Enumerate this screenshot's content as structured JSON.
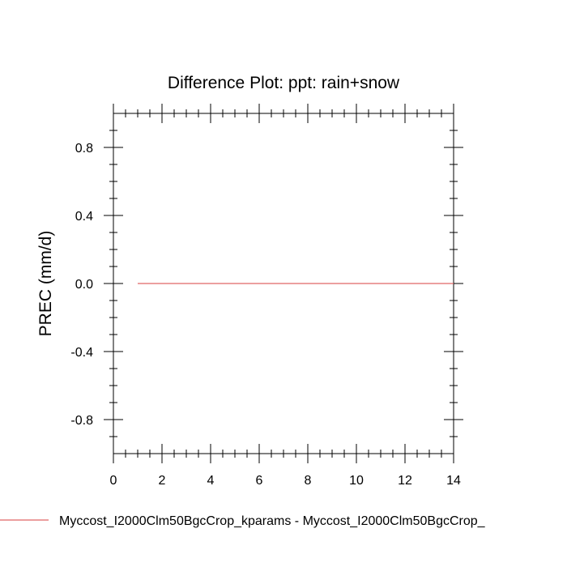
{
  "chart_data": {
    "type": "line",
    "title": "Difference Plot: ppt: rain+snow",
    "xlabel": "",
    "ylabel": "PREC  (mm/d)",
    "xlim": [
      0,
      14
    ],
    "ylim": [
      -1,
      1
    ],
    "x_major_ticks": [
      0,
      2,
      4,
      6,
      8,
      10,
      12,
      14
    ],
    "x_tick_labels": [
      "0",
      "2",
      "4",
      "6",
      "8",
      "10",
      "12",
      "14"
    ],
    "y_major_ticks": [
      0.8,
      0.4,
      0.0,
      -0.4,
      -0.8
    ],
    "y_tick_labels": [
      "0.8",
      "0.4",
      "0.0",
      "-0.4",
      "-0.8"
    ],
    "grid": false,
    "legend_position": "bottom",
    "series": [
      {
        "name": "Myccost_I2000Clm50BgcCrop_kparams - Myccost_I2000Clm50BgcCrop_",
        "color": "#e06666",
        "x": [
          1,
          2,
          3,
          4,
          5,
          6,
          7,
          8,
          9,
          10,
          11,
          12,
          13,
          14
        ],
        "values": [
          0,
          0,
          0,
          0,
          0,
          0,
          0,
          0,
          0,
          0,
          0,
          0,
          0,
          0
        ]
      }
    ]
  }
}
